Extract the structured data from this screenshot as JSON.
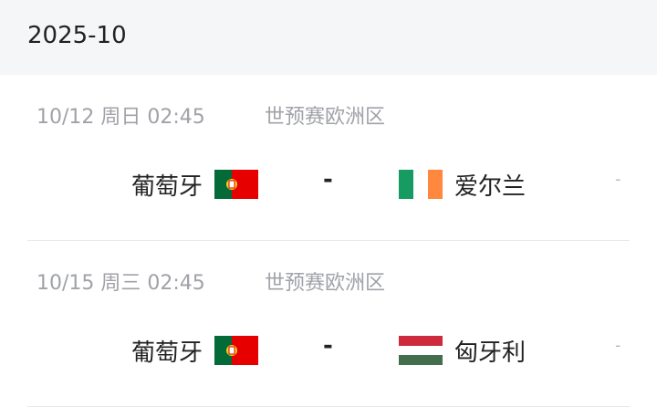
{
  "month": "2025-10",
  "matches": [
    {
      "time": "10/12  周日 02:45",
      "league": "世预赛欧洲区",
      "home": "葡萄牙",
      "home_flag": "portugal-flag",
      "vs": "-",
      "away": "爱尔兰",
      "away_flag": "ireland-flag",
      "score": "-"
    },
    {
      "time": "10/15  周三 02:45",
      "league": "世预赛欧洲区",
      "home": "葡萄牙",
      "home_flag": "portugal-flag",
      "vs": "-",
      "away": "匈牙利",
      "away_flag": "hungary-flag",
      "score": "-"
    }
  ]
}
